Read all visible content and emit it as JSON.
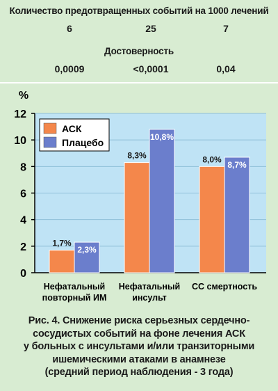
{
  "header": {
    "prevented_title": "Количество предотвращенных событий на 1000 лечений",
    "prevented_values": [
      "6",
      "25",
      "7"
    ],
    "significance_title": "Достоверность",
    "significance_values": [
      "0,0009",
      "<0,0001",
      "0,04"
    ]
  },
  "chart_data": {
    "type": "bar",
    "ylabel": "%",
    "ylim": [
      0,
      12
    ],
    "yticks": [
      "0",
      "2",
      "4",
      "6",
      "8",
      "10",
      "12"
    ],
    "categories": [
      [
        "Нефатальный",
        "повторный ИМ"
      ],
      [
        "Нефатальный",
        "инсульт"
      ],
      [
        "СС смертность"
      ]
    ],
    "series": [
      {
        "name": "АСК",
        "color": "#f4874b",
        "values": [
          1.7,
          8.3,
          8.0
        ],
        "labels": [
          "1,7%",
          "8,3%",
          "8,0%"
        ]
      },
      {
        "name": "Плацебо",
        "color": "#6b7ecc",
        "values": [
          2.3,
          10.8,
          8.7
        ],
        "labels": [
          "2,3%",
          "10,8%",
          "8,7%"
        ]
      }
    ],
    "plot_bg": "#bfe3f5",
    "grid": true,
    "legend_position": "top-left"
  },
  "caption": [
    "Рис. 4. Снижение риска серьезных сердечно-",
    "сосудистых событий на фоне лечения АСК",
    "у больных с инсультами и/или транзиторными",
    "ишемическими атаками в анамнезе",
    "(средний период наблюдения - 3 года)"
  ]
}
